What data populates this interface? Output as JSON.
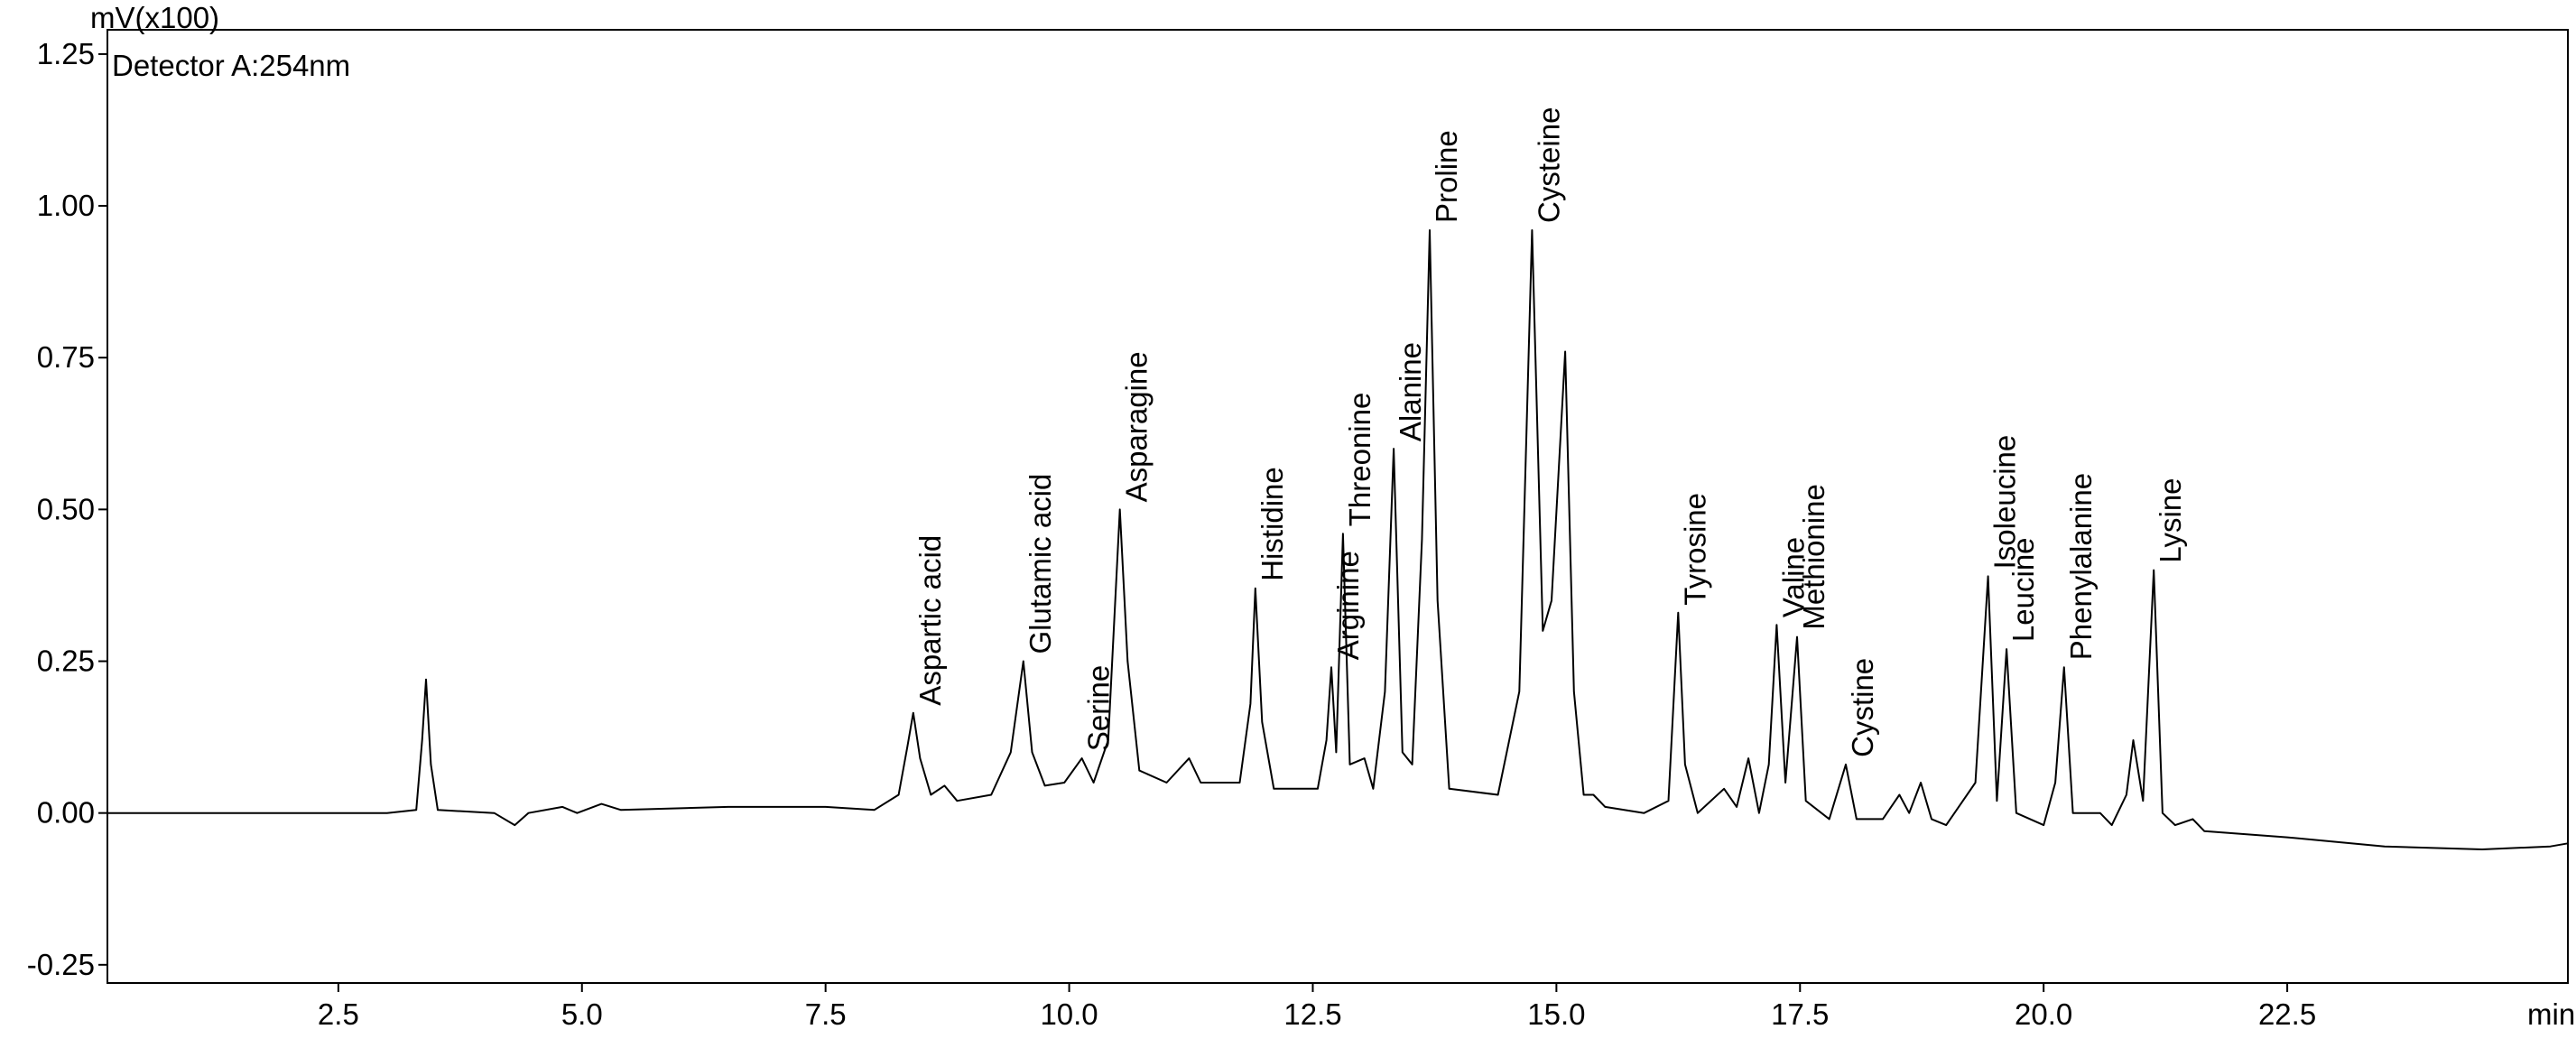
{
  "chart_data": {
    "type": "line",
    "ylabel": "mV(x100)",
    "subtitle": "Detector A:254nm",
    "xlabel": "min",
    "color": "#000000",
    "xlim": [
      0.13,
      25.38
    ],
    "ylim": [
      -0.28,
      1.29
    ],
    "xticks": [
      2.5,
      {
        "value": 5,
        "label": "5.0"
      },
      7.5,
      {
        "value": 10,
        "label": "10.0"
      },
      12.5,
      {
        "value": 15,
        "label": "15.0"
      },
      17.5,
      {
        "value": 20,
        "label": "20.0"
      },
      22.5
    ],
    "yticks": [
      -0.25,
      {
        "value": 0,
        "label": "0.00"
      },
      0.25,
      {
        "value": 0.5,
        "label": "0.50"
      },
      0.75,
      {
        "value": 1,
        "label": "1.00"
      },
      1.25
    ],
    "x": [
      0.13,
      3.0,
      3.3,
      3.36,
      3.4,
      3.45,
      3.52,
      4.1,
      4.31,
      4.45,
      4.8,
      4.95,
      5.2,
      5.4,
      6.5,
      7.5,
      8.0,
      8.25,
      8.34,
      8.4,
      8.47,
      8.58,
      8.72,
      8.85,
      9.2,
      9.4,
      9.53,
      9.62,
      9.75,
      9.95,
      10.13,
      10.25,
      10.4,
      10.52,
      10.6,
      10.72,
      11.0,
      11.23,
      11.35,
      11.75,
      11.86,
      11.91,
      11.98,
      12.1,
      12.55,
      12.64,
      12.69,
      12.74,
      12.81,
      12.88,
      13.03,
      13.12,
      13.24,
      13.33,
      13.42,
      13.52,
      13.62,
      13.7,
      13.78,
      13.9,
      14.4,
      14.62,
      14.75,
      14.86,
      14.95,
      15.09,
      15.18,
      15.28,
      15.38,
      15.5,
      15.9,
      16.15,
      16.25,
      16.32,
      16.45,
      16.72,
      16.85,
      16.97,
      17.08,
      17.18,
      17.26,
      17.35,
      17.47,
      17.56,
      17.8,
      17.97,
      18.08,
      18.35,
      18.52,
      18.62,
      18.74,
      18.85,
      19.0,
      19.3,
      19.43,
      19.52,
      19.62,
      19.72,
      20.0,
      20.12,
      20.21,
      20.3,
      20.58,
      20.7,
      20.85,
      20.92,
      21.02,
      21.13,
      21.22,
      21.35,
      21.53,
      21.65,
      22.5,
      23.5,
      24.5,
      25.2,
      25.38
    ],
    "values": [
      0.0,
      0.0,
      0.005,
      0.12,
      0.22,
      0.08,
      0.005,
      0.0,
      -0.02,
      0.0,
      0.01,
      0.0,
      0.015,
      0.005,
      0.01,
      0.01,
      0.005,
      0.03,
      0.11,
      0.165,
      0.09,
      0.03,
      0.045,
      0.02,
      0.03,
      0.1,
      0.25,
      0.1,
      0.045,
      0.05,
      0.09,
      0.05,
      0.12,
      0.5,
      0.25,
      0.07,
      0.05,
      0.09,
      0.05,
      0.05,
      0.18,
      0.37,
      0.15,
      0.04,
      0.04,
      0.12,
      0.24,
      0.1,
      0.46,
      0.08,
      0.09,
      0.04,
      0.2,
      0.6,
      0.1,
      0.08,
      0.45,
      0.96,
      0.35,
      0.04,
      0.03,
      0.2,
      0.96,
      0.3,
      0.35,
      0.76,
      0.2,
      0.03,
      0.03,
      0.01,
      0.0,
      0.02,
      0.33,
      0.08,
      0.0,
      0.04,
      0.01,
      0.09,
      0.0,
      0.08,
      0.31,
      0.05,
      0.29,
      0.02,
      -0.01,
      0.08,
      -0.01,
      -0.01,
      0.03,
      0.0,
      0.05,
      -0.01,
      -0.02,
      0.05,
      0.39,
      0.02,
      0.27,
      0.0,
      -0.02,
      0.05,
      0.24,
      0.0,
      0.0,
      -0.02,
      0.03,
      0.12,
      0.02,
      0.4,
      0.0,
      -0.02,
      -0.01,
      -0.03,
      -0.04,
      -0.055,
      -0.06,
      -0.055,
      -0.05
    ],
    "annotations": [
      {
        "text": "Aspartic acid",
        "x": 8.4,
        "y": 0.165
      },
      {
        "text": "Glutamic acid",
        "x": 9.53,
        "y": 0.25
      },
      {
        "text": "Serine",
        "x": 10.13,
        "y": 0.09
      },
      {
        "text": "Asparagine",
        "x": 10.52,
        "y": 0.5
      },
      {
        "text": "Histidine",
        "x": 11.91,
        "y": 0.37
      },
      {
        "text": "Arginine",
        "x": 12.69,
        "y": 0.24
      },
      {
        "text": "Threonine",
        "x": 12.81,
        "y": 0.46
      },
      {
        "text": "Alanine",
        "x": 13.33,
        "y": 0.6
      },
      {
        "text": "Proline",
        "x": 13.7,
        "y": 0.96
      },
      {
        "text": "Cysteine",
        "x": 14.75,
        "y": 0.96
      },
      {
        "text": "Tyrosine",
        "x": 16.25,
        "y": 0.33
      },
      {
        "text": "Valine",
        "x": 17.26,
        "y": 0.31
      },
      {
        "text": "Methionine",
        "x": 17.47,
        "y": 0.29
      },
      {
        "text": "Cystine",
        "x": 17.97,
        "y": 0.08
      },
      {
        "text": "Isoleucine",
        "x": 19.43,
        "y": 0.39
      },
      {
        "text": "Leucine",
        "x": 19.62,
        "y": 0.27
      },
      {
        "text": "Phenylalanine",
        "x": 20.21,
        "y": 0.24
      },
      {
        "text": "Lysine",
        "x": 21.13,
        "y": 0.4
      }
    ]
  }
}
